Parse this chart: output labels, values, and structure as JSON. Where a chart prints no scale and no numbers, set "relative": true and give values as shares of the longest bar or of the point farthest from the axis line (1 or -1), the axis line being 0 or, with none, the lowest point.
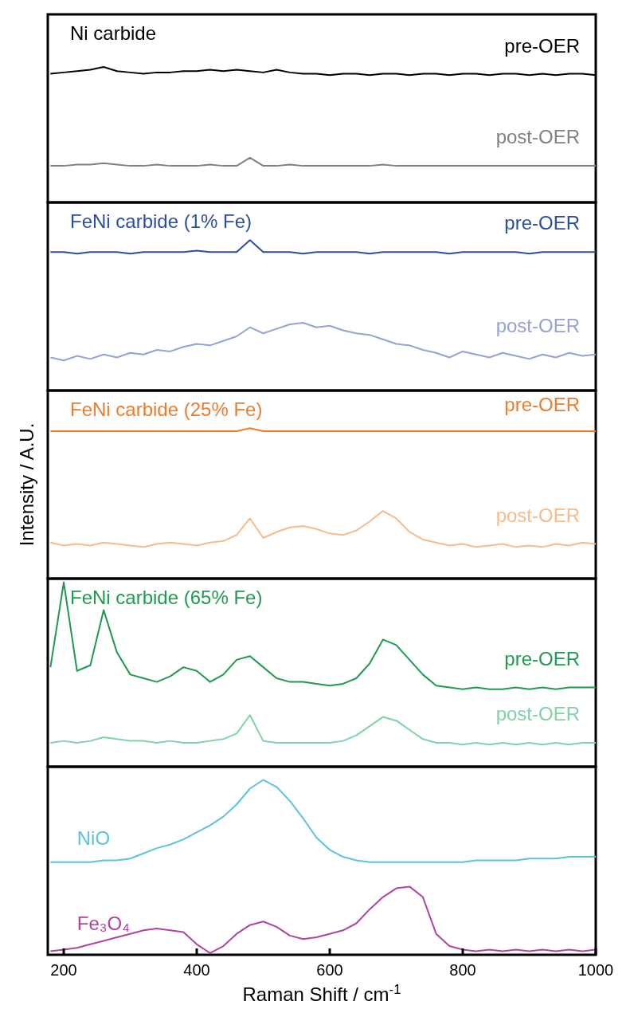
{
  "chart_data": [
    {
      "type": "line",
      "title": "Ni carbide",
      "relative": true,
      "xlim": [
        176,
        1000
      ],
      "tick_labels": false,
      "legend": false,
      "grid": false,
      "x": [
        180,
        200,
        220,
        240,
        260,
        280,
        300,
        320,
        340,
        360,
        380,
        400,
        420,
        440,
        460,
        480,
        500,
        520,
        540,
        560,
        580,
        600,
        620,
        640,
        660,
        680,
        700,
        720,
        740,
        760,
        780,
        800,
        820,
        840,
        860,
        880,
        900,
        920,
        940,
        960,
        980,
        1000
      ],
      "series": [
        {
          "name": "pre-OER",
          "color": "#000000",
          "values": [
            0.95,
            0.96,
            0.97,
            0.98,
            1.0,
            0.97,
            0.96,
            0.95,
            0.96,
            0.96,
            0.97,
            0.97,
            0.98,
            0.97,
            0.98,
            0.97,
            0.96,
            0.98,
            0.96,
            0.95,
            0.95,
            0.94,
            0.95,
            0.95,
            0.94,
            0.95,
            0.95,
            0.94,
            0.95,
            0.95,
            0.94,
            0.95,
            0.95,
            0.94,
            0.95,
            0.95,
            0.94,
            0.95,
            0.94,
            0.95,
            0.95,
            0.94
          ]
        },
        {
          "name": "post-OER",
          "color": "#808080",
          "values": [
            0.27,
            0.27,
            0.28,
            0.28,
            0.29,
            0.28,
            0.27,
            0.27,
            0.28,
            0.27,
            0.27,
            0.27,
            0.28,
            0.27,
            0.27,
            0.33,
            0.27,
            0.27,
            0.28,
            0.27,
            0.27,
            0.27,
            0.27,
            0.27,
            0.27,
            0.28,
            0.27,
            0.27,
            0.27,
            0.27,
            0.27,
            0.27,
            0.27,
            0.27,
            0.27,
            0.27,
            0.27,
            0.27,
            0.27,
            0.27,
            0.27,
            0.27
          ]
        }
      ]
    },
    {
      "type": "line",
      "title": "FeNi carbide (1% Fe)",
      "relative": true,
      "xlim": [
        176,
        1000
      ],
      "tick_labels": false,
      "legend": false,
      "grid": false,
      "x": [
        180,
        200,
        220,
        240,
        260,
        280,
        300,
        320,
        340,
        360,
        380,
        400,
        420,
        440,
        460,
        480,
        500,
        520,
        540,
        560,
        580,
        600,
        620,
        640,
        660,
        680,
        700,
        720,
        740,
        760,
        780,
        800,
        820,
        840,
        860,
        880,
        900,
        920,
        940,
        960,
        980,
        1000
      ],
      "series": [
        {
          "name": "pre-OER",
          "color": "#2b4ea0",
          "values": [
            0.92,
            0.92,
            0.91,
            0.92,
            0.92,
            0.92,
            0.91,
            0.92,
            0.92,
            0.92,
            0.92,
            0.93,
            0.92,
            0.92,
            0.92,
            1.0,
            0.92,
            0.92,
            0.92,
            0.91,
            0.92,
            0.92,
            0.92,
            0.92,
            0.91,
            0.92,
            0.92,
            0.92,
            0.92,
            0.92,
            0.91,
            0.92,
            0.92,
            0.92,
            0.92,
            0.92,
            0.91,
            0.92,
            0.92,
            0.92,
            0.92,
            0.92
          ]
        },
        {
          "name": "post-OER",
          "color": "#94a3d1",
          "values": [
            0.22,
            0.2,
            0.23,
            0.21,
            0.24,
            0.22,
            0.25,
            0.24,
            0.27,
            0.26,
            0.29,
            0.31,
            0.3,
            0.33,
            0.36,
            0.42,
            0.38,
            0.41,
            0.44,
            0.45,
            0.42,
            0.43,
            0.4,
            0.38,
            0.37,
            0.34,
            0.31,
            0.3,
            0.27,
            0.25,
            0.22,
            0.26,
            0.24,
            0.22,
            0.25,
            0.23,
            0.21,
            0.24,
            0.22,
            0.25,
            0.23,
            0.24
          ]
        }
      ]
    },
    {
      "type": "line",
      "title": "FeNi carbide (25% Fe)",
      "ylabel": "Intensity / A.U.",
      "relative": true,
      "xlim": [
        176,
        1000
      ],
      "tick_labels": false,
      "legend": false,
      "grid": false,
      "x": [
        180,
        200,
        220,
        240,
        260,
        280,
        300,
        320,
        340,
        360,
        380,
        400,
        420,
        440,
        460,
        480,
        500,
        520,
        540,
        560,
        580,
        600,
        620,
        640,
        660,
        680,
        700,
        720,
        740,
        760,
        780,
        800,
        820,
        840,
        860,
        880,
        900,
        920,
        940,
        960,
        980,
        1000
      ],
      "series": [
        {
          "name": "pre-OER",
          "color": "#ee7d2b",
          "values": [
            0.98,
            0.98,
            0.98,
            0.98,
            0.98,
            0.98,
            0.98,
            0.98,
            0.98,
            0.98,
            0.98,
            0.98,
            0.98,
            0.98,
            0.98,
            1.0,
            0.98,
            0.98,
            0.98,
            0.98,
            0.98,
            0.98,
            0.98,
            0.98,
            0.98,
            0.98,
            0.98,
            0.98,
            0.98,
            0.98,
            0.98,
            0.98,
            0.98,
            0.98,
            0.98,
            0.98,
            0.98,
            0.98,
            0.98,
            0.98,
            0.98,
            0.98
          ]
        },
        {
          "name": "post-OER",
          "color": "#f5bc8e",
          "values": [
            0.24,
            0.22,
            0.23,
            0.22,
            0.24,
            0.23,
            0.22,
            0.21,
            0.23,
            0.24,
            0.23,
            0.22,
            0.24,
            0.25,
            0.29,
            0.4,
            0.27,
            0.31,
            0.34,
            0.35,
            0.33,
            0.3,
            0.29,
            0.32,
            0.38,
            0.45,
            0.4,
            0.31,
            0.26,
            0.24,
            0.22,
            0.23,
            0.21,
            0.22,
            0.23,
            0.21,
            0.22,
            0.21,
            0.23,
            0.22,
            0.24,
            0.23
          ]
        }
      ]
    },
    {
      "type": "line",
      "title": "FeNi carbide (65% Fe)",
      "relative": true,
      "xlim": [
        176,
        1000
      ],
      "tick_labels": false,
      "legend": false,
      "grid": false,
      "x": [
        180,
        200,
        220,
        240,
        260,
        280,
        300,
        320,
        340,
        360,
        380,
        400,
        420,
        440,
        460,
        480,
        500,
        520,
        540,
        560,
        580,
        600,
        620,
        640,
        660,
        680,
        700,
        720,
        740,
        760,
        780,
        800,
        820,
        840,
        860,
        880,
        900,
        920,
        940,
        960,
        980,
        1000
      ],
      "series": [
        {
          "name": "pre-OER",
          "color": "#1f9a50",
          "values": [
            0.54,
            1.0,
            0.52,
            0.55,
            0.85,
            0.62,
            0.5,
            0.48,
            0.46,
            0.49,
            0.54,
            0.52,
            0.46,
            0.5,
            0.58,
            0.6,
            0.54,
            0.48,
            0.46,
            0.46,
            0.45,
            0.44,
            0.45,
            0.48,
            0.56,
            0.69,
            0.66,
            0.58,
            0.5,
            0.44,
            0.43,
            0.42,
            0.43,
            0.42,
            0.42,
            0.43,
            0.42,
            0.43,
            0.42,
            0.43,
            0.43,
            0.43
          ]
        },
        {
          "name": "post-OER",
          "color": "#7fd3a6",
          "values": [
            0.13,
            0.14,
            0.13,
            0.14,
            0.16,
            0.15,
            0.14,
            0.14,
            0.13,
            0.14,
            0.13,
            0.13,
            0.14,
            0.15,
            0.18,
            0.28,
            0.14,
            0.13,
            0.13,
            0.13,
            0.13,
            0.13,
            0.14,
            0.17,
            0.22,
            0.27,
            0.25,
            0.2,
            0.15,
            0.13,
            0.13,
            0.12,
            0.13,
            0.12,
            0.13,
            0.12,
            0.13,
            0.12,
            0.13,
            0.12,
            0.13,
            0.13
          ]
        }
      ]
    },
    {
      "type": "line",
      "xlabel": "Raman Shift / cm$^{-1}$",
      "relative": true,
      "xlim": [
        176,
        1000
      ],
      "xticks": [
        200,
        400,
        600,
        800,
        1000
      ],
      "tick_labels": "x",
      "legend": false,
      "grid": false,
      "x": [
        180,
        200,
        220,
        240,
        260,
        280,
        300,
        320,
        340,
        360,
        380,
        400,
        420,
        440,
        460,
        480,
        500,
        520,
        540,
        560,
        580,
        600,
        620,
        640,
        660,
        680,
        700,
        720,
        740,
        760,
        780,
        800,
        820,
        840,
        860,
        880,
        900,
        920,
        940,
        960,
        980,
        1000
      ],
      "series": [
        {
          "name": "NiO",
          "color": "#5bc4d8",
          "values": [
            0.53,
            0.53,
            0.53,
            0.53,
            0.54,
            0.54,
            0.55,
            0.58,
            0.61,
            0.63,
            0.66,
            0.7,
            0.74,
            0.79,
            0.86,
            0.95,
            1.0,
            0.96,
            0.88,
            0.78,
            0.67,
            0.6,
            0.56,
            0.54,
            0.53,
            0.53,
            0.53,
            0.53,
            0.53,
            0.53,
            0.53,
            0.53,
            0.54,
            0.54,
            0.54,
            0.54,
            0.55,
            0.55,
            0.55,
            0.56,
            0.56,
            0.56
          ]
        },
        {
          "name": "Fe₃O₄",
          "color": "#b0469b",
          "values": [
            0.02,
            0.03,
            0.04,
            0.06,
            0.08,
            0.1,
            0.12,
            0.14,
            0.15,
            0.14,
            0.13,
            0.06,
            0.01,
            0.05,
            0.12,
            0.17,
            0.19,
            0.16,
            0.11,
            0.09,
            0.1,
            0.12,
            0.14,
            0.18,
            0.26,
            0.33,
            0.38,
            0.39,
            0.33,
            0.12,
            0.05,
            0.03,
            0.02,
            0.03,
            0.02,
            0.03,
            0.02,
            0.03,
            0.02,
            0.03,
            0.02,
            0.03
          ]
        }
      ]
    }
  ]
}
